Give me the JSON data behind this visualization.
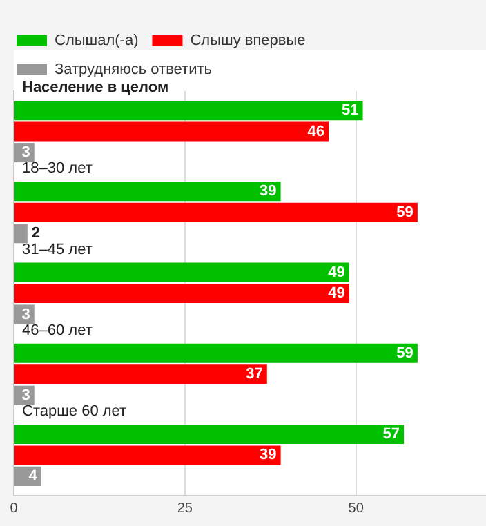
{
  "chart_data": {
    "type": "bar",
    "orientation": "horizontal",
    "categories": [
      "Население в целом",
      "18–30 лет",
      "31–45 лет",
      "46–60 лет",
      "Старше 60 лет"
    ],
    "series": [
      {
        "name": "Слышал(-а)",
        "color": "#00c000",
        "values": [
          51,
          39,
          49,
          59,
          57
        ]
      },
      {
        "name": "Слышу впервые",
        "color": "#ff0000",
        "values": [
          46,
          59,
          49,
          37,
          39
        ]
      },
      {
        "name": "Затрудняюсь ответить",
        "color": "#999999",
        "values": [
          3,
          2,
          3,
          3,
          4
        ]
      }
    ],
    "xlim": [
      0,
      69
    ],
    "xticks": [
      0,
      25,
      50
    ],
    "grid": "x",
    "legend": "top left",
    "data_labels": true
  }
}
